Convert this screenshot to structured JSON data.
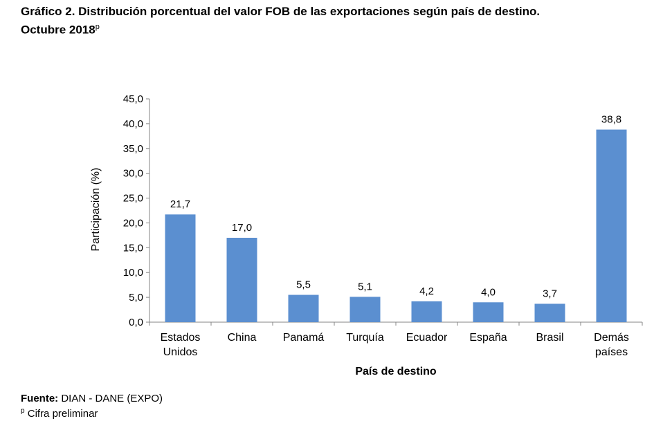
{
  "title_line1": "Gráfico 2. Distribución porcentual del valor FOB de las exportaciones según país de destino.",
  "title_line2": "Octubre 2018",
  "title_sup": "p",
  "chart_data": {
    "type": "bar",
    "categories": [
      [
        "Estados",
        "Unidos"
      ],
      [
        "China"
      ],
      [
        "Panamá"
      ],
      [
        "Turquía"
      ],
      [
        "Ecuador"
      ],
      [
        "España"
      ],
      [
        "Brasil"
      ],
      [
        "Demás",
        "países"
      ]
    ],
    "values": [
      21.7,
      17.0,
      5.5,
      5.1,
      4.2,
      4.0,
      3.7,
      38.8
    ],
    "value_labels": [
      "21,7",
      "17,0",
      "5,5",
      "5,1",
      "4,2",
      "4,0",
      "3,7",
      "38,8"
    ],
    "xlabel": "País de destino",
    "ylabel": "Participación (%)",
    "ylim": [
      0,
      45
    ],
    "yticks": [
      "0,0",
      "5,0",
      "10,0",
      "15,0",
      "20,0",
      "25,0",
      "30,0",
      "35,0",
      "40,0",
      "45,0"
    ],
    "grid": false,
    "bar_color": "#5B8FD0"
  },
  "footer": {
    "source_label": "Fuente:",
    "source_text": " DIAN - DANE (EXPO)",
    "note_sup": "p",
    "note_text": " Cifra preliminar"
  }
}
